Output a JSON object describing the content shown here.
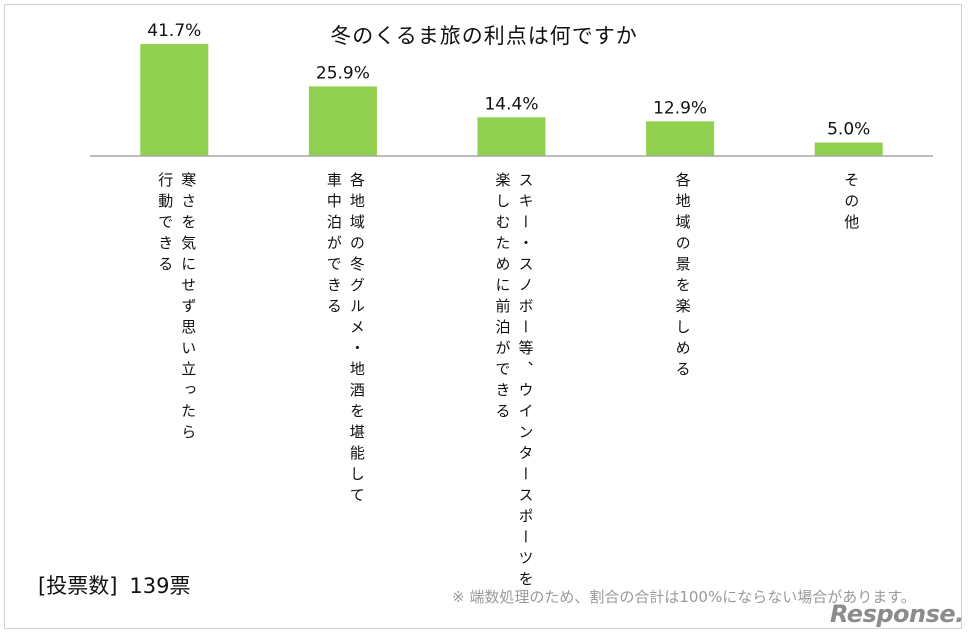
{
  "chart_data": {
    "type": "bar",
    "title": "冬のくるま旅の利点は何ですか",
    "categories": [
      "寒さを気にせず思い立ったら\n行動できる",
      "各地域の冬グルメ・地酒を堪能して\n車中泊ができる",
      "スキー・スノボー等、ウインタースポーツを\n楽しむために前泊ができる",
      "各地域の景を楽しめる",
      "その他"
    ],
    "values": [
      41.7,
      25.9,
      14.4,
      12.9,
      5.0
    ],
    "data_labels": [
      "41.7%",
      "25.9%",
      "14.4%",
      "12.9%",
      "5.0%"
    ],
    "ylim": [
      0,
      45
    ],
    "bar_color": "#92d050",
    "axis_color": "#a6a6a6",
    "grid": false,
    "legend": "none"
  },
  "footer": {
    "votes_label": "[投票数]",
    "votes_value": "139票",
    "note": "※ 端数処理のため、割合の合計は100%にならない場合があります。"
  },
  "watermark": "Response."
}
